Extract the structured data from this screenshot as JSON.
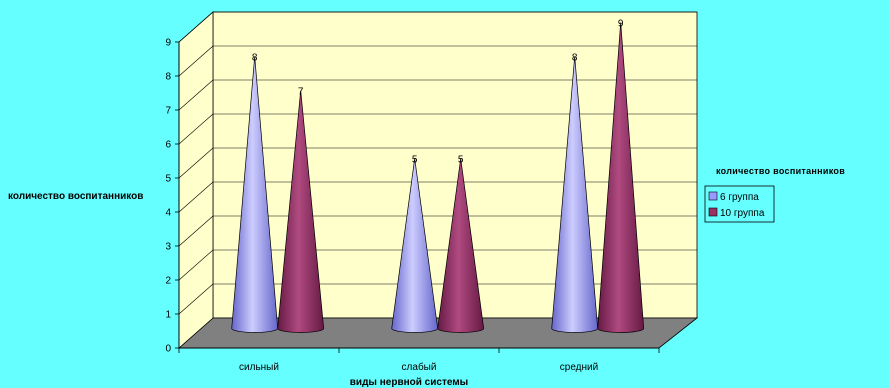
{
  "chart_data": {
    "type": "bar",
    "subtype": "3d-cone",
    "categories": [
      "сильный",
      "слабый",
      "средний"
    ],
    "series": [
      {
        "name": "6 группа",
        "values": [
          8,
          5,
          8
        ],
        "color": "#9999FF"
      },
      {
        "name": "10 группа",
        "values": [
          7,
          5,
          9
        ],
        "color": "#993366"
      }
    ],
    "xlabel": "виды нервной системы",
    "ylabel": "количество воспитанников",
    "legend_title": "количество воспитанников",
    "yticks": [
      0,
      1,
      2,
      3,
      4,
      5,
      6,
      7,
      8,
      9
    ],
    "ylim": [
      0,
      9
    ],
    "grid": true,
    "legend_position": "right",
    "colors": {
      "background": "#66FFFF",
      "plot_wall": "#FFFFCC",
      "floor": "#808080"
    }
  }
}
